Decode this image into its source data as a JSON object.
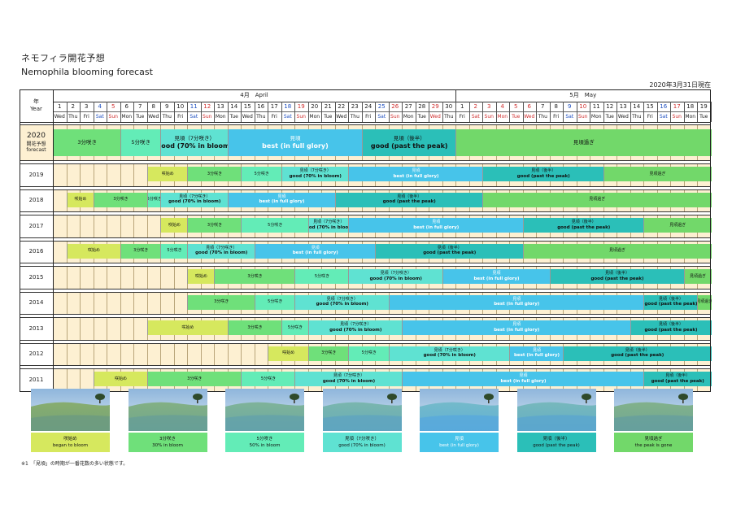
{
  "title_jp": "ネモフィラ開花予想",
  "title_en": "Nemophila blooming forecast",
  "as_of": "2020年3月31日現在",
  "header": {
    "year_jp": "年",
    "year_en": "Year",
    "month_april": "4月　April",
    "month_may": "5月　May"
  },
  "calendar": {
    "dates": [
      "1",
      "2",
      "3",
      "4",
      "5",
      "6",
      "7",
      "8",
      "9",
      "10",
      "11",
      "12",
      "13",
      "14",
      "15",
      "16",
      "17",
      "18",
      "19",
      "20",
      "21",
      "22",
      "23",
      "24",
      "25",
      "26",
      "27",
      "28",
      "29",
      "30",
      "1",
      "2",
      "3",
      "4",
      "5",
      "6",
      "7",
      "8",
      "9",
      "10",
      "11",
      "12",
      "13",
      "14",
      "15",
      "16",
      "17",
      "18",
      "19"
    ],
    "weekdays": [
      "Wed",
      "Thu",
      "Fri",
      "Sat",
      "Sun",
      "Mon",
      "Tue",
      "Wed",
      "Thu",
      "Fri",
      "Sat",
      "Sun",
      "Mon",
      "Tue",
      "Wed",
      "Thu",
      "Fri",
      "Sat",
      "Sun",
      "Mon",
      "Tue",
      "Wed",
      "Thu",
      "Fri",
      "Sat",
      "Sun",
      "Mon",
      "Tue",
      "Wed",
      "Thu",
      "Fri",
      "Sat",
      "Sun",
      "Mon",
      "Tue",
      "Wed",
      "Thu",
      "Fri",
      "Sat",
      "Sun",
      "Mon",
      "Tue",
      "Wed",
      "Thu",
      "Fri",
      "Sat",
      "Sun",
      "Mon",
      "Tue"
    ],
    "date_colors": [
      "",
      "",
      "",
      "sat",
      "sun",
      "",
      "",
      "",
      "",
      "",
      "sat",
      "sun",
      "",
      "",
      "",
      "",
      "",
      "sat",
      "sun",
      "",
      "",
      "",
      "",
      "",
      "sat",
      "sun",
      "",
      "",
      "sun",
      "",
      "",
      "sun",
      "sun",
      "sun",
      "sun",
      "sun",
      "",
      "",
      "sat",
      "sun",
      "",
      "",
      "",
      "",
      "",
      "sat",
      "sun",
      "",
      ""
    ]
  },
  "stages": {
    "s1": {
      "jp": "咲始め",
      "en": "began to bloom",
      "color": "#d6e85e"
    },
    "s2": {
      "jp": "3分咲き",
      "en": "30% in bloom",
      "color": "#6fe07a"
    },
    "s3": {
      "jp": "5分咲き",
      "en": "50% in bloom",
      "color": "#63ecb7"
    },
    "s4": {
      "jp": "見頃（7分咲き）",
      "en": "good (70% in bloom)",
      "color": "#5fe2d2"
    },
    "s5": {
      "jp": "見頃",
      "en": "best (in full glory)",
      "color": "#47c4ea"
    },
    "s6": {
      "jp": "見頃（後半）",
      "en": "good (past the peak)",
      "color": "#2bbfb8"
    },
    "s7": {
      "jp": "見頃過ぎ",
      "en": "the peak is gone",
      "color": "#72d86a"
    }
  },
  "rows": [
    {
      "year": "2020",
      "sub1": "開花予想",
      "sub2": "forecast",
      "big": true,
      "bars": [
        {
          "s": "s2",
          "a": 1,
          "b": 6
        },
        {
          "s": "s3",
          "a": 6,
          "b": 9
        },
        {
          "s": "s4",
          "a": 9,
          "b": 14
        },
        {
          "s": "s5",
          "a": 14,
          "b": 24
        },
        {
          "s": "s6",
          "a": 24,
          "b": 31
        },
        {
          "s": "s7",
          "a": 31,
          "b": 50
        }
      ]
    },
    {
      "year": "2019",
      "bars": [
        {
          "s": "s1",
          "a": 8,
          "b": 11
        },
        {
          "s": "s2",
          "a": 11,
          "b": 15
        },
        {
          "s": "s3",
          "a": 15,
          "b": 18
        },
        {
          "s": "s4",
          "a": 18,
          "b": 23
        },
        {
          "s": "s5",
          "a": 23,
          "b": 33
        },
        {
          "s": "s6",
          "a": 33,
          "b": 42
        },
        {
          "s": "s7",
          "a": 42,
          "b": 50
        }
      ]
    },
    {
      "year": "2018",
      "bars": [
        {
          "s": "s1",
          "a": 2,
          "b": 4
        },
        {
          "s": "s2",
          "a": 4,
          "b": 8
        },
        {
          "s": "s3",
          "a": 8,
          "b": 9
        },
        {
          "s": "s4",
          "a": 9,
          "b": 14
        },
        {
          "s": "s5",
          "a": 14,
          "b": 22
        },
        {
          "s": "s6",
          "a": 22,
          "b": 33
        },
        {
          "s": "s7",
          "a": 33,
          "b": 50
        }
      ]
    },
    {
      "year": "2017",
      "bars": [
        {
          "s": "s1",
          "a": 9,
          "b": 11
        },
        {
          "s": "s2",
          "a": 11,
          "b": 15
        },
        {
          "s": "s3",
          "a": 15,
          "b": 20
        },
        {
          "s": "s4",
          "a": 20,
          "b": 23
        },
        {
          "s": "s5",
          "a": 23,
          "b": 36
        },
        {
          "s": "s6",
          "a": 36,
          "b": 45
        },
        {
          "s": "s7",
          "a": 45,
          "b": 50
        }
      ]
    },
    {
      "year": "2016",
      "bars": [
        {
          "s": "s1",
          "a": 2,
          "b": 6
        },
        {
          "s": "s2",
          "a": 6,
          "b": 9
        },
        {
          "s": "s3",
          "a": 9,
          "b": 11
        },
        {
          "s": "s4",
          "a": 11,
          "b": 16
        },
        {
          "s": "s5",
          "a": 16,
          "b": 25
        },
        {
          "s": "s6",
          "a": 25,
          "b": 36
        },
        {
          "s": "s7",
          "a": 36,
          "b": 50
        }
      ]
    },
    {
      "year": "2015",
      "bars": [
        {
          "s": "s1",
          "a": 11,
          "b": 13
        },
        {
          "s": "s2",
          "a": 13,
          "b": 19
        },
        {
          "s": "s3",
          "a": 19,
          "b": 23
        },
        {
          "s": "s4",
          "a": 23,
          "b": 30
        },
        {
          "s": "s5",
          "a": 30,
          "b": 38
        },
        {
          "s": "s6",
          "a": 38,
          "b": 48
        },
        {
          "s": "s7",
          "a": 48,
          "b": 50
        }
      ]
    },
    {
      "year": "2014",
      "bars": [
        {
          "s": "s1",
          "a": 11,
          "b": 11
        },
        {
          "s": "s2",
          "a": 11,
          "b": 16
        },
        {
          "s": "s3",
          "a": 16,
          "b": 19
        },
        {
          "s": "s4",
          "a": 19,
          "b": 26
        },
        {
          "s": "s5",
          "a": 26,
          "b": 45
        },
        {
          "s": "s6",
          "a": 45,
          "b": 49
        },
        {
          "s": "s7",
          "a": 49,
          "b": 50
        }
      ]
    },
    {
      "year": "2013",
      "bars": [
        {
          "s": "s1",
          "a": 8,
          "b": 14
        },
        {
          "s": "s2",
          "a": 14,
          "b": 18
        },
        {
          "s": "s3",
          "a": 18,
          "b": 20
        },
        {
          "s": "s4",
          "a": 20,
          "b": 27
        },
        {
          "s": "s5",
          "a": 27,
          "b": 44
        },
        {
          "s": "s6",
          "a": 44,
          "b": 50
        }
      ]
    },
    {
      "year": "2012",
      "bars": [
        {
          "s": "s1",
          "a": 17,
          "b": 20
        },
        {
          "s": "s2",
          "a": 20,
          "b": 23
        },
        {
          "s": "s3",
          "a": 23,
          "b": 26
        },
        {
          "s": "s4",
          "a": 26,
          "b": 35
        },
        {
          "s": "s5",
          "a": 35,
          "b": 39
        },
        {
          "s": "s6",
          "a": 39,
          "b": 50
        }
      ]
    },
    {
      "year": "2011",
      "bars": [
        {
          "s": "s1",
          "a": 4,
          "b": 8
        },
        {
          "s": "s2",
          "a": 8,
          "b": 15
        },
        {
          "s": "s3",
          "a": 15,
          "b": 19
        },
        {
          "s": "s4",
          "a": 19,
          "b": 27
        },
        {
          "s": "s5",
          "a": 27,
          "b": 45
        },
        {
          "s": "s6",
          "a": 45,
          "b": 50
        }
      ]
    }
  ],
  "photos": [
    {
      "jp": "咲始め",
      "en": "began to bloom",
      "color": "#d6e85e"
    },
    {
      "jp": "3分咲き",
      "en": "30% in bloom",
      "color": "#6fe07a"
    },
    {
      "jp": "5分咲き",
      "en": "50% in bloom",
      "color": "#63ecb7"
    },
    {
      "jp": "見頃（7分咲き）",
      "en": "good (70% in bloom)",
      "color": "#5fe2d2"
    },
    {
      "jp": "見頃",
      "en": "best (in full glory)",
      "color": "#47c4ea"
    },
    {
      "jp": "見頃（後半）",
      "en": "good (past the peak)",
      "color": "#2bbfb8"
    },
    {
      "jp": "見頃過ぎ",
      "en": "the peak is gone",
      "color": "#72d86a"
    }
  ],
  "note": "※1　「見頃」の時期が一番花数の多い状態です。"
}
